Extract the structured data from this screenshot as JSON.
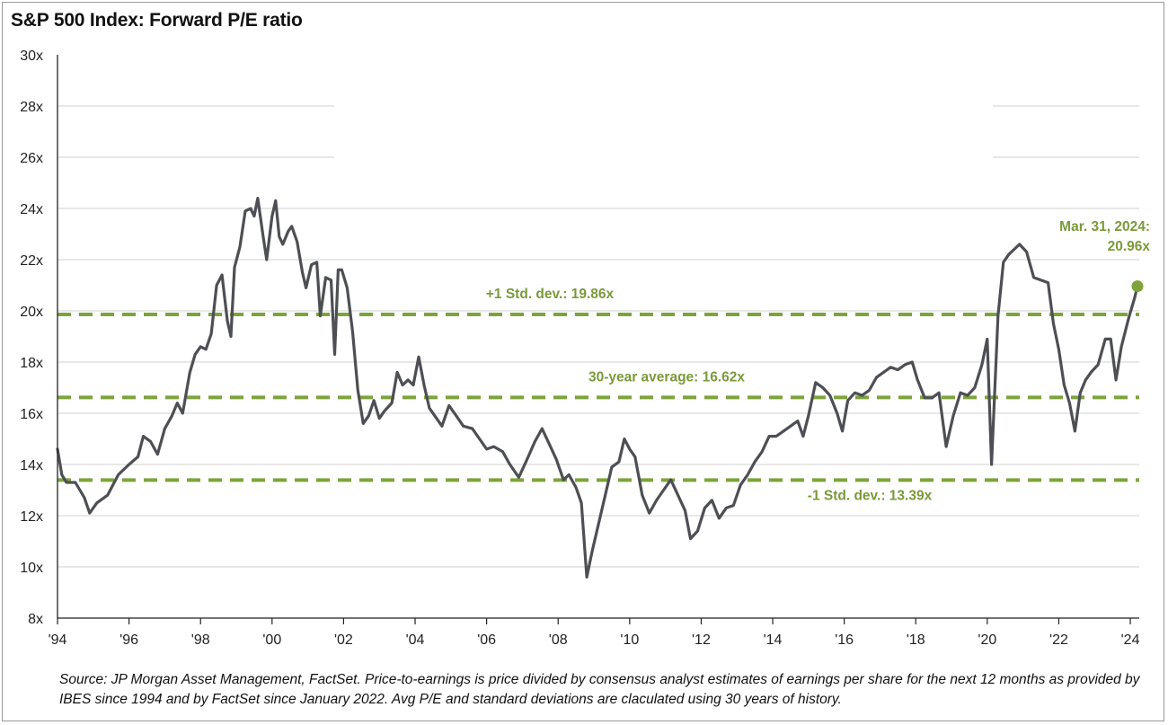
{
  "title": "S&P 500 Index: Forward P/E ratio",
  "source": "Source: JP Morgan Asset Management, FactSet. Price-to-earnings is price divided by consensus analyst estimates of earnings per share for the next 12 months as provided by IBES since 1994 and by FactSet since January 2022. Avg P/E and standard deviations are claculated using 30 years of history.",
  "colors": {
    "line": "#4d4f54",
    "accent": "#7ea33b",
    "grid": "#d9d9d9",
    "axis": "#222222"
  },
  "chart_data": {
    "type": "line",
    "title": "S&P 500 Index: Forward P/E ratio",
    "xlabel": "",
    "ylabel": "",
    "xlim": [
      1994.0,
      2024.25
    ],
    "ylim": [
      8,
      30
    ],
    "grid": true,
    "ytick_values": [
      8,
      10,
      12,
      14,
      16,
      18,
      20,
      22,
      24,
      26,
      28,
      30
    ],
    "ytick_labels": [
      "8x",
      "10x",
      "12x",
      "14x",
      "16x",
      "18x",
      "20x",
      "22x",
      "24x",
      "26x",
      "28x",
      "30x"
    ],
    "xtick_values": [
      1994,
      1996,
      1998,
      2000,
      2002,
      2004,
      2006,
      2008,
      2010,
      2012,
      2014,
      2016,
      2018,
      2020,
      2022,
      2024
    ],
    "xtick_labels": [
      "'94",
      "'96",
      "'98",
      "'00",
      "'02",
      "'04",
      "'06",
      "'08",
      "'10",
      "'12",
      "'14",
      "'16",
      "'18",
      "'20",
      "'22",
      "'24"
    ],
    "series": [
      {
        "points": [
          [
            1994.0,
            14.6
          ],
          [
            1994.12,
            13.6
          ],
          [
            1994.25,
            13.3
          ],
          [
            1994.5,
            13.3
          ],
          [
            1994.75,
            12.7
          ],
          [
            1994.9,
            12.1
          ],
          [
            1995.1,
            12.5
          ],
          [
            1995.4,
            12.8
          ],
          [
            1995.7,
            13.6
          ],
          [
            1996.0,
            14.0
          ],
          [
            1996.25,
            14.3
          ],
          [
            1996.4,
            15.1
          ],
          [
            1996.6,
            14.9
          ],
          [
            1996.8,
            14.4
          ],
          [
            1997.0,
            15.4
          ],
          [
            1997.2,
            15.9
          ],
          [
            1997.35,
            16.4
          ],
          [
            1997.5,
            16.0
          ],
          [
            1997.7,
            17.6
          ],
          [
            1997.85,
            18.3
          ],
          [
            1998.0,
            18.6
          ],
          [
            1998.15,
            18.5
          ],
          [
            1998.3,
            19.1
          ],
          [
            1998.45,
            21.0
          ],
          [
            1998.6,
            21.4
          ],
          [
            1998.75,
            19.6
          ],
          [
            1998.85,
            19.0
          ],
          [
            1998.95,
            21.7
          ],
          [
            1999.1,
            22.5
          ],
          [
            1999.25,
            23.9
          ],
          [
            1999.4,
            24.0
          ],
          [
            1999.5,
            23.7
          ],
          [
            1999.6,
            24.4
          ],
          [
            1999.75,
            22.9
          ],
          [
            1999.85,
            22.0
          ],
          [
            2000.0,
            23.7
          ],
          [
            2000.1,
            24.3
          ],
          [
            2000.2,
            22.9
          ],
          [
            2000.3,
            22.6
          ],
          [
            2000.45,
            23.1
          ],
          [
            2000.55,
            23.3
          ],
          [
            2000.7,
            22.7
          ],
          [
            2000.85,
            21.5
          ],
          [
            2000.95,
            20.9
          ],
          [
            2001.1,
            21.8
          ],
          [
            2001.25,
            21.9
          ],
          [
            2001.35,
            19.8
          ],
          [
            2001.5,
            21.3
          ],
          [
            2001.65,
            21.2
          ],
          [
            2001.75,
            18.3
          ],
          [
            2001.85,
            21.6
          ],
          [
            2001.95,
            21.6
          ],
          [
            2002.1,
            20.9
          ],
          [
            2002.25,
            19.2
          ],
          [
            2002.4,
            16.9
          ],
          [
            2002.55,
            15.6
          ],
          [
            2002.7,
            15.9
          ],
          [
            2002.85,
            16.5
          ],
          [
            2003.0,
            15.8
          ],
          [
            2003.15,
            16.1
          ],
          [
            2003.35,
            16.4
          ],
          [
            2003.5,
            17.6
          ],
          [
            2003.65,
            17.1
          ],
          [
            2003.8,
            17.3
          ],
          [
            2003.95,
            17.1
          ],
          [
            2004.1,
            18.2
          ],
          [
            2004.25,
            17.1
          ],
          [
            2004.4,
            16.2
          ],
          [
            2004.6,
            15.8
          ],
          [
            2004.75,
            15.5
          ],
          [
            2004.95,
            16.3
          ],
          [
            2005.15,
            15.9
          ],
          [
            2005.35,
            15.5
          ],
          [
            2005.6,
            15.4
          ],
          [
            2005.8,
            15.0
          ],
          [
            2006.0,
            14.6
          ],
          [
            2006.2,
            14.7
          ],
          [
            2006.45,
            14.5
          ],
          [
            2006.65,
            14.0
          ],
          [
            2006.9,
            13.5
          ],
          [
            2007.1,
            14.1
          ],
          [
            2007.35,
            14.9
          ],
          [
            2007.55,
            15.4
          ],
          [
            2007.75,
            14.8
          ],
          [
            2007.95,
            14.2
          ],
          [
            2008.15,
            13.4
          ],
          [
            2008.3,
            13.6
          ],
          [
            2008.5,
            13.1
          ],
          [
            2008.65,
            12.5
          ],
          [
            2008.8,
            9.6
          ],
          [
            2008.95,
            10.6
          ],
          [
            2009.1,
            11.5
          ],
          [
            2009.3,
            12.7
          ],
          [
            2009.5,
            13.9
          ],
          [
            2009.7,
            14.1
          ],
          [
            2009.85,
            15.0
          ],
          [
            2010.0,
            14.6
          ],
          [
            2010.15,
            14.3
          ],
          [
            2010.35,
            12.8
          ],
          [
            2010.55,
            12.1
          ],
          [
            2010.75,
            12.6
          ],
          [
            2010.95,
            13.0
          ],
          [
            2011.15,
            13.4
          ],
          [
            2011.35,
            12.8
          ],
          [
            2011.55,
            12.2
          ],
          [
            2011.7,
            11.1
          ],
          [
            2011.9,
            11.4
          ],
          [
            2012.1,
            12.3
          ],
          [
            2012.3,
            12.6
          ],
          [
            2012.5,
            11.9
          ],
          [
            2012.7,
            12.3
          ],
          [
            2012.9,
            12.4
          ],
          [
            2013.1,
            13.2
          ],
          [
            2013.3,
            13.6
          ],
          [
            2013.5,
            14.1
          ],
          [
            2013.7,
            14.5
          ],
          [
            2013.9,
            15.1
          ],
          [
            2014.1,
            15.1
          ],
          [
            2014.3,
            15.3
          ],
          [
            2014.5,
            15.5
          ],
          [
            2014.7,
            15.7
          ],
          [
            2014.85,
            15.1
          ],
          [
            2015.0,
            15.9
          ],
          [
            2015.2,
            17.2
          ],
          [
            2015.4,
            17.0
          ],
          [
            2015.6,
            16.7
          ],
          [
            2015.8,
            16.0
          ],
          [
            2015.95,
            15.3
          ],
          [
            2016.1,
            16.5
          ],
          [
            2016.3,
            16.8
          ],
          [
            2016.5,
            16.7
          ],
          [
            2016.7,
            16.9
          ],
          [
            2016.9,
            17.4
          ],
          [
            2017.1,
            17.6
          ],
          [
            2017.3,
            17.8
          ],
          [
            2017.5,
            17.7
          ],
          [
            2017.7,
            17.9
          ],
          [
            2017.9,
            18.0
          ],
          [
            2018.05,
            17.3
          ],
          [
            2018.25,
            16.6
          ],
          [
            2018.45,
            16.6
          ],
          [
            2018.65,
            16.8
          ],
          [
            2018.85,
            14.7
          ],
          [
            2019.05,
            15.9
          ],
          [
            2019.25,
            16.8
          ],
          [
            2019.45,
            16.7
          ],
          [
            2019.65,
            17.0
          ],
          [
            2019.85,
            17.9
          ],
          [
            2020.0,
            18.9
          ],
          [
            2020.12,
            14.0
          ],
          [
            2020.3,
            19.8
          ],
          [
            2020.45,
            21.9
          ],
          [
            2020.6,
            22.2
          ],
          [
            2020.75,
            22.4
          ],
          [
            2020.9,
            22.6
          ],
          [
            2021.1,
            22.3
          ],
          [
            2021.3,
            21.3
          ],
          [
            2021.5,
            21.2
          ],
          [
            2021.7,
            21.1
          ],
          [
            2021.85,
            19.5
          ],
          [
            2022.0,
            18.5
          ],
          [
            2022.15,
            17.1
          ],
          [
            2022.3,
            16.4
          ],
          [
            2022.45,
            15.3
          ],
          [
            2022.6,
            16.8
          ],
          [
            2022.75,
            17.3
          ],
          [
            2022.9,
            17.6
          ],
          [
            2023.1,
            17.9
          ],
          [
            2023.3,
            18.9
          ],
          [
            2023.45,
            18.9
          ],
          [
            2023.6,
            17.3
          ],
          [
            2023.75,
            18.6
          ],
          [
            2023.95,
            19.7
          ],
          [
            2024.12,
            20.5
          ],
          [
            2024.2,
            20.96
          ]
        ]
      }
    ],
    "reference_lines": [
      {
        "label": "+1 Std. dev.: 19.86x",
        "value": 19.86
      },
      {
        "label": "30-year average: 16.62x",
        "value": 16.62
      },
      {
        "label": "-1 Std. dev.: 13.39x",
        "value": 13.39
      }
    ],
    "annotation": {
      "line1": "Mar. 31, 2024:",
      "line2": "20.96x",
      "x": 2024.2,
      "y": 20.96
    }
  }
}
